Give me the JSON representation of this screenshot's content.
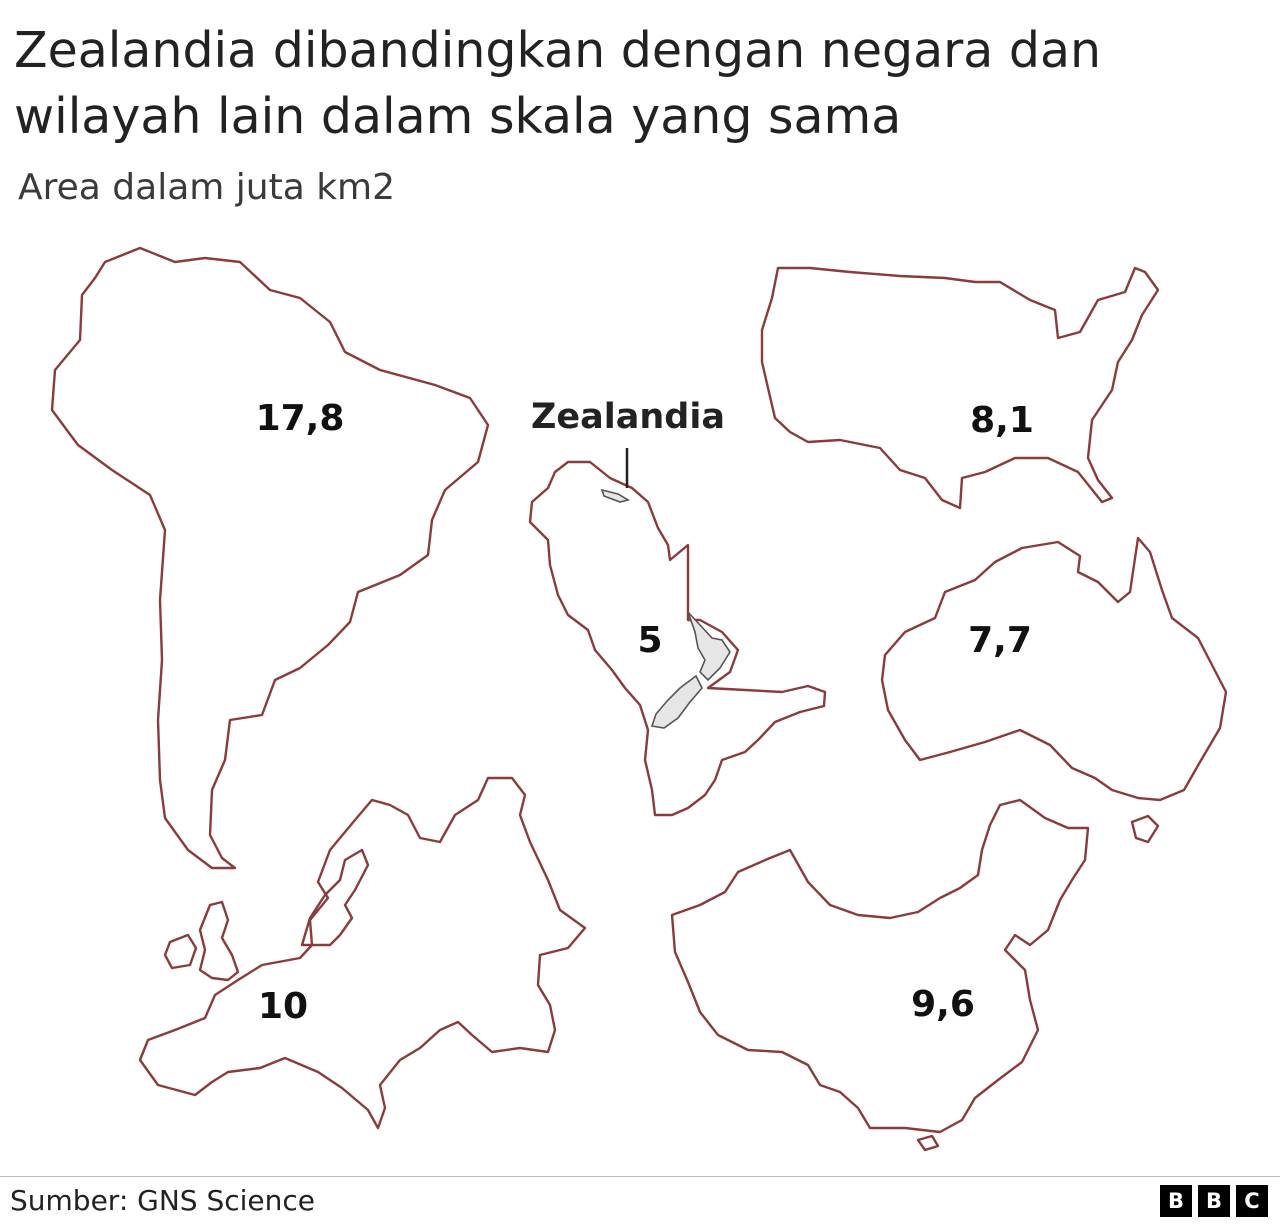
{
  "title": "Zealandia dibandingkan dengan negara dan wilayah lain dalam skala yang sama",
  "subtitle": "Area dalam juta km2",
  "zealandia_label": "Zealandia",
  "regions": [
    {
      "name": "south-america",
      "area": "17,8"
    },
    {
      "name": "zealandia",
      "area": "5"
    },
    {
      "name": "usa",
      "area": "8,1"
    },
    {
      "name": "australia",
      "area": "7,7"
    },
    {
      "name": "europe",
      "area": "10"
    },
    {
      "name": "china",
      "area": "9,6"
    }
  ],
  "source": "Sumber: GNS Science",
  "logo": [
    "B",
    "B",
    "C"
  ],
  "colors": {
    "outline": "#8a3b3b",
    "nz_fill": "#e6e6e6"
  }
}
